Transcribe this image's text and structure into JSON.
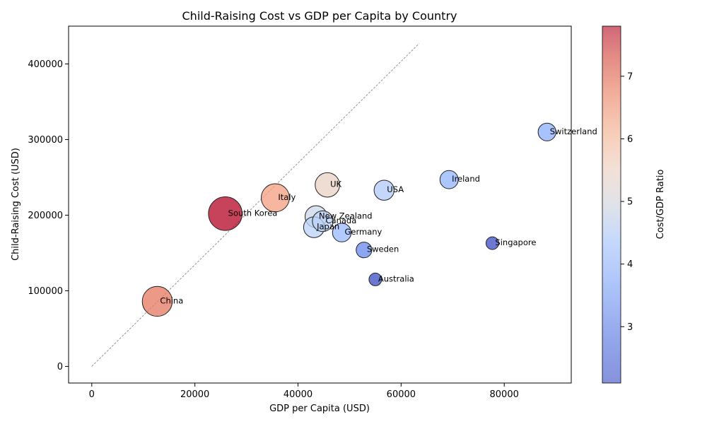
{
  "chart_data": {
    "type": "scatter",
    "title": "Child-Raising Cost vs GDP per Capita by Country",
    "xlabel": "GDP per Capita (USD)",
    "ylabel": "Child-Raising Cost (USD)",
    "xlim": [
      -4500,
      93000
    ],
    "ylim": [
      -22000,
      450000
    ],
    "xticks": [
      0,
      20000,
      40000,
      60000,
      80000
    ],
    "yticks": [
      0,
      100000,
      200000,
      300000,
      400000
    ],
    "xtick_labels": [
      "0",
      "20000",
      "40000",
      "60000",
      "80000"
    ],
    "ytick_labels": [
      "0",
      "100000",
      "200000",
      "300000",
      "400000"
    ],
    "grid": false,
    "reference_line": {
      "style": "dashed",
      "color": "#888888",
      "from": [
        0,
        0
      ],
      "to": [
        63500,
        427000
      ]
    },
    "colorbar": {
      "label": "Cost/GDP Ratio",
      "colormap": "coolwarm",
      "range": [
        2.1,
        7.8
      ],
      "ticks": [
        3,
        4,
        5,
        6,
        7
      ],
      "tick_labels": [
        "3",
        "4",
        "5",
        "6",
        "7"
      ]
    },
    "points": [
      {
        "country": "South Korea",
        "gdp": 25900,
        "cost": 202000,
        "ratio": 7.8
      },
      {
        "country": "China",
        "gdp": 12700,
        "cost": 86000,
        "ratio": 6.8
      },
      {
        "country": "Italy",
        "gdp": 35600,
        "cost": 223000,
        "ratio": 6.3
      },
      {
        "country": "UK",
        "gdp": 45700,
        "cost": 240000,
        "ratio": 5.3
      },
      {
        "country": "Japan",
        "gdp": 43100,
        "cost": 184000,
        "ratio": 4.3
      },
      {
        "country": "New Zealand",
        "gdp": 43500,
        "cost": 198000,
        "ratio": 4.6
      },
      {
        "country": "Canada",
        "gdp": 44800,
        "cost": 192000,
        "ratio": 4.3
      },
      {
        "country": "USA",
        "gdp": 56700,
        "cost": 233000,
        "ratio": 4.1
      },
      {
        "country": "Germany",
        "gdp": 48500,
        "cost": 177000,
        "ratio": 3.7
      },
      {
        "country": "Ireland",
        "gdp": 69300,
        "cost": 247000,
        "ratio": 3.6
      },
      {
        "country": "Switzerland",
        "gdp": 88300,
        "cost": 310000,
        "ratio": 3.5
      },
      {
        "country": "Sweden",
        "gdp": 52800,
        "cost": 154000,
        "ratio": 2.9
      },
      {
        "country": "Singapore",
        "gdp": 77700,
        "cost": 163000,
        "ratio": 2.1
      },
      {
        "country": "Australia",
        "gdp": 55000,
        "cost": 115000,
        "ratio": 2.1
      }
    ]
  }
}
